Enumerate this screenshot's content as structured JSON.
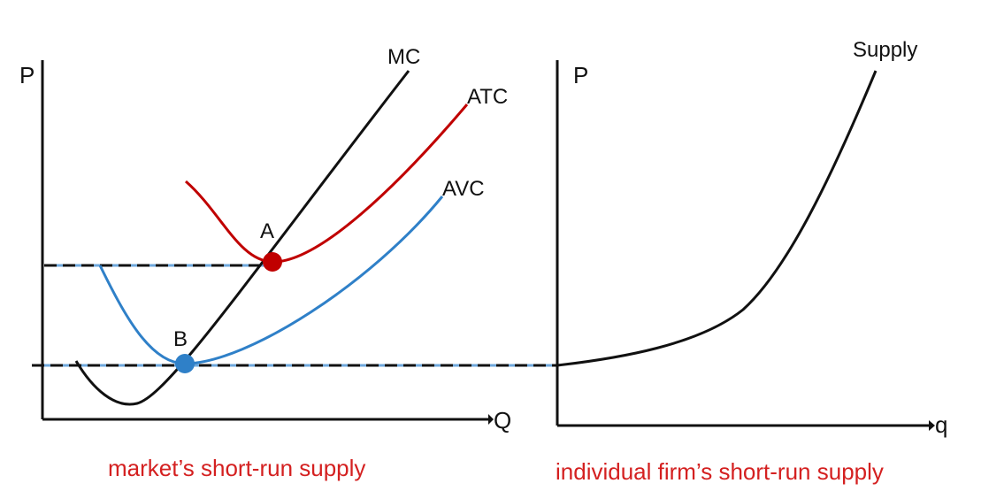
{
  "colors": {
    "mc": "#111111",
    "atc": "#c00000",
    "avc": "#2f80c8",
    "dash_blue": "#6fa8dc",
    "caption": "#d42020"
  },
  "left_panel": {
    "y_axis_label": "P",
    "x_axis_label": "Q",
    "curves": {
      "mc": "MC",
      "atc": "ATC",
      "avc": "AVC"
    },
    "points": {
      "a": "A",
      "b": "B"
    },
    "caption": "market’s short-run supply"
  },
  "right_panel": {
    "y_axis_label": "P",
    "x_axis_label": "q",
    "curve_label": "Supply",
    "caption": "individual firm’s short-run supply"
  }
}
